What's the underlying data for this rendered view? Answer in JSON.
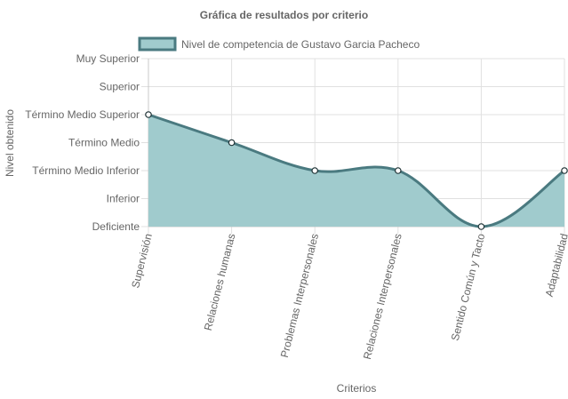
{
  "chart_data": {
    "type": "line",
    "title": "Gráfica de resultados por criterio",
    "xlabel": "Criterios",
    "ylabel": "Nivel obtenido",
    "y_levels": [
      "Deficiente",
      "Inferior",
      "Término Medio Inferior",
      "Término Medio",
      "Término Medio Superior",
      "Superior",
      "Muy Superior"
    ],
    "ylim": [
      0,
      6
    ],
    "categories": [
      "Supervisión",
      "Relaciones humanas",
      "Problemas Interpersonales",
      "Relaciones Interpersonales",
      "Sentido Común y Tacto",
      "Adaptabilidad"
    ],
    "series": [
      {
        "name": "Nivel de competencia de Gustavo Garcia Pacheco",
        "values": [
          4,
          3,
          2,
          2,
          0,
          2
        ]
      }
    ],
    "grid": true,
    "legend_position": "top",
    "fill": true,
    "colors": {
      "line": "#4a7a80",
      "fill": "#a0cbcd",
      "grid": "#e0e0e0",
      "text": "#666666"
    }
  }
}
